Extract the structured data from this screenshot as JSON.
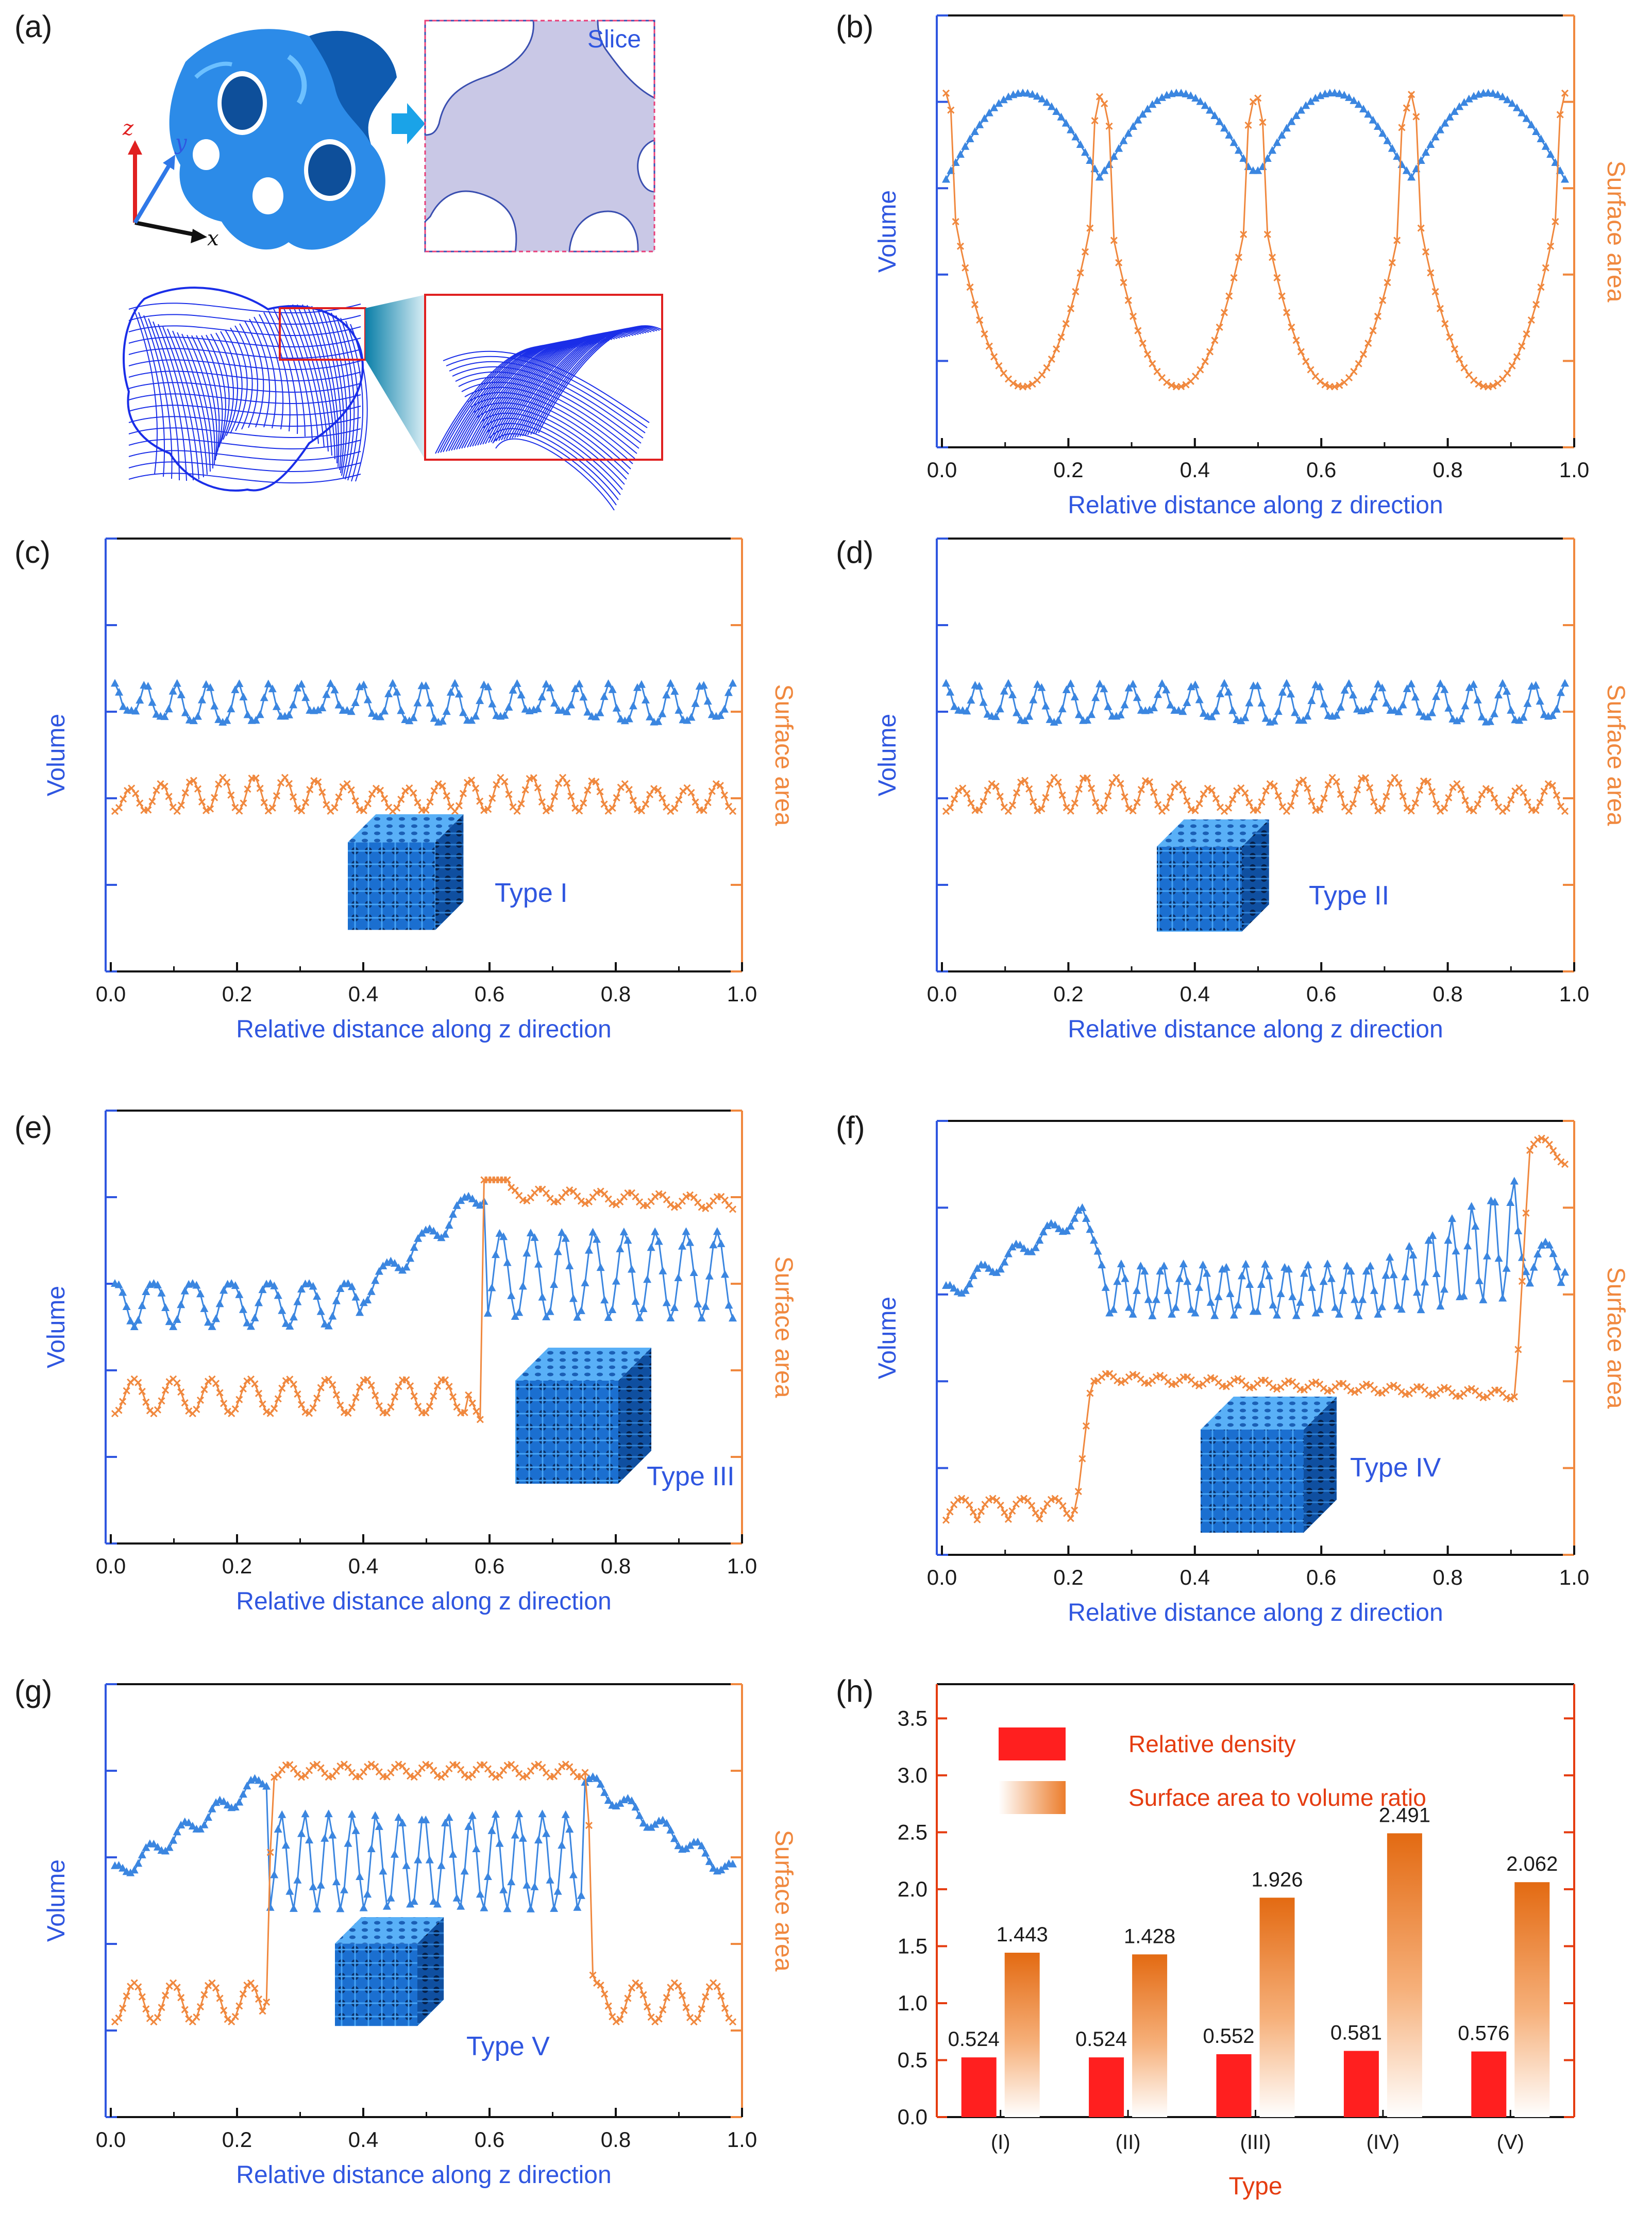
{
  "colors": {
    "volume": "#3b86e0",
    "volume_axis": "#2f56e0",
    "surface": "#f0883e",
    "bar_red": "#ff1f1f",
    "bar_orange": "#e8731c",
    "h_axis": "#e53c10"
  },
  "panel_a": {
    "label": "(a)",
    "slice_label": "Slice",
    "axis_labels": {
      "x": "x",
      "y": "y",
      "z": "z"
    }
  },
  "chart_data": [
    {
      "id": "b",
      "label": "(b)",
      "type": "line",
      "xlabel": "Relative distance along z direction",
      "ylabel_left": "Volume",
      "ylabel_right": "Surface area",
      "xticks": [
        "0.0",
        "0.2",
        "0.4",
        "0.6",
        "0.8",
        "1.0"
      ],
      "xlim": [
        0,
        1
      ],
      "ylim": [
        0,
        1
      ],
      "series": [
        {
          "name": "Volume",
          "marker": "triangle",
          "points": 130,
          "profile": "dome",
          "periods": 4,
          "base": 0.62,
          "amp": 0.2
        },
        {
          "name": "Surface area",
          "marker": "x",
          "points": 130,
          "profile": "u",
          "periods": 4,
          "base": 0.14,
          "amp": 0.67
        }
      ]
    },
    {
      "id": "c",
      "label": "(c)",
      "type": "line",
      "xlabel": "Relative distance along z direction",
      "ylabel_left": "Volume",
      "ylabel_right": "Surface area",
      "xticks": [
        "0.0",
        "0.2",
        "0.4",
        "0.6",
        "0.8",
        "1.0"
      ],
      "xlim": [
        0,
        1
      ],
      "ylim": [
        0,
        1
      ],
      "inset_text": "Type I",
      "series": [
        {
          "name": "Volume",
          "marker": "triangle",
          "points": 150,
          "profile": "osc_down",
          "periods": 20,
          "base": 0.65,
          "amp": 0.09
        },
        {
          "name": "Surface area",
          "marker": "x",
          "points": 150,
          "profile": "osc_up",
          "periods": 20,
          "base": 0.4,
          "amp": 0.08
        }
      ]
    },
    {
      "id": "d",
      "label": "(d)",
      "type": "line",
      "xlabel": "Relative distance along z direction",
      "ylabel_left": "Volume",
      "ylabel_right": "Surface area",
      "xticks": [
        "0.0",
        "0.2",
        "0.4",
        "0.6",
        "0.8",
        "1.0"
      ],
      "xlim": [
        0,
        1
      ],
      "ylim": [
        0,
        1
      ],
      "inset_text": "Type II",
      "series": [
        {
          "name": "Volume",
          "marker": "triangle",
          "points": 150,
          "profile": "osc_down",
          "periods": 20,
          "base": 0.65,
          "amp": 0.09
        },
        {
          "name": "Surface area",
          "marker": "x",
          "points": 150,
          "profile": "osc_up",
          "periods": 20,
          "base": 0.4,
          "amp": 0.08
        }
      ]
    },
    {
      "id": "e",
      "label": "(e)",
      "type": "line",
      "xlabel": "Relative distance along z direction",
      "ylabel_left": "Volume",
      "ylabel_right": "Surface area",
      "xticks": [
        "0.0",
        "0.2",
        "0.4",
        "0.6",
        "0.8",
        "1.0"
      ],
      "xlim": [
        0,
        1
      ],
      "ylim": [
        0,
        1
      ],
      "inset_text": "Type III",
      "series": [
        {
          "name": "Volume",
          "marker": "triangle",
          "points": 160,
          "profile": "typeIII_vol"
        },
        {
          "name": "Surface area",
          "marker": "x",
          "points": 160,
          "profile": "typeIII_sa"
        }
      ]
    },
    {
      "id": "f",
      "label": "(f)",
      "type": "line",
      "xlabel": "Relative distance along z direction",
      "ylabel_left": "Volume",
      "ylabel_right": "Surface area",
      "xticks": [
        "0.0",
        "0.2",
        "0.4",
        "0.6",
        "0.8",
        "1.0"
      ],
      "xlim": [
        0,
        1
      ],
      "ylim": [
        0,
        1
      ],
      "inset_text": "Type IV",
      "series": [
        {
          "name": "Volume",
          "marker": "triangle",
          "points": 160,
          "profile": "typeIV_vol"
        },
        {
          "name": "Surface area",
          "marker": "x",
          "points": 160,
          "profile": "typeIV_sa"
        }
      ]
    },
    {
      "id": "g",
      "label": "(g)",
      "type": "line",
      "xlabel": "Relative distance along z direction",
      "ylabel_left": "Volume",
      "ylabel_right": "Surface area",
      "xticks": [
        "0.0",
        "0.2",
        "0.4",
        "0.6",
        "0.8",
        "1.0"
      ],
      "xlim": [
        0,
        1
      ],
      "ylim": [
        0,
        1
      ],
      "inset_text": "Type V",
      "series": [
        {
          "name": "Volume",
          "marker": "triangle",
          "points": 160,
          "profile": "typeV_vol"
        },
        {
          "name": "Surface area",
          "marker": "x",
          "points": 160,
          "profile": "typeV_sa"
        }
      ]
    },
    {
      "id": "h",
      "label": "(h)",
      "type": "bar",
      "xlabel": "Type",
      "categories": [
        "(I)",
        "(II)",
        "(III)",
        "(IV)",
        "(V)"
      ],
      "yticks": [
        "0.0",
        "0.5",
        "1.0",
        "1.5",
        "2.0",
        "2.5",
        "3.0",
        "3.5"
      ],
      "ylim": [
        0,
        3.8
      ],
      "series": [
        {
          "name": "Relative density",
          "values": [
            0.524,
            0.524,
            0.552,
            0.581,
            0.576
          ],
          "labels": [
            "0.524",
            "0.524",
            "0.552",
            "0.581",
            "0.576"
          ]
        },
        {
          "name": "Surface area to volume ratio",
          "values": [
            1.443,
            1.428,
            1.926,
            2.491,
            2.062
          ],
          "labels": [
            "1.443",
            "1.428",
            "1.926",
            "2.491",
            "2.062"
          ]
        }
      ]
    }
  ]
}
